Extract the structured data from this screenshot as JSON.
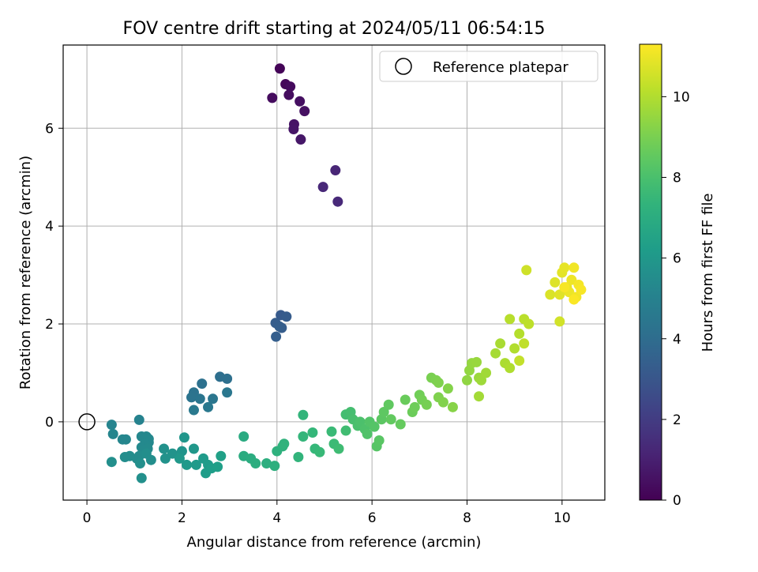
{
  "chart_data": {
    "type": "scatter",
    "title": "FOV centre drift starting at 2024/05/11 06:54:15",
    "xlabel": "Angular distance from reference (arcmin)",
    "ylabel": "Rotation from reference (arcmin)",
    "xlim": [
      -0.5,
      10.9
    ],
    "ylim": [
      -1.6,
      7.7
    ],
    "xticks": [
      0,
      2,
      4,
      6,
      8,
      10
    ],
    "yticks": [
      0,
      2,
      4,
      6
    ],
    "grid": true,
    "legend": {
      "placement": "top-right",
      "entries": [
        "Reference platepar"
      ]
    },
    "reference_point": {
      "x": 0,
      "y": 0,
      "label": "Reference platepar"
    },
    "colorbar": {
      "label": "Hours from first FF file",
      "range": [
        0,
        11.3
      ],
      "ticks": [
        0,
        2,
        4,
        6,
        8,
        10
      ],
      "colormap": "viridis"
    },
    "series": [
      {
        "points": [
          [
            4.06,
            7.22,
            0.1
          ],
          [
            4.18,
            6.9,
            0.2
          ],
          [
            4.28,
            6.85,
            0.3
          ],
          [
            3.9,
            6.62,
            0.35
          ],
          [
            4.25,
            6.68,
            0.4
          ],
          [
            4.48,
            6.55,
            0.45
          ],
          [
            4.58,
            6.35,
            0.5
          ],
          [
            4.36,
            6.08,
            0.6
          ],
          [
            4.35,
            5.98,
            0.65
          ],
          [
            4.5,
            5.77,
            0.7
          ],
          [
            5.23,
            5.14,
            1.2
          ],
          [
            4.97,
            4.8,
            1.25
          ],
          [
            5.28,
            4.5,
            1.3
          ],
          [
            4.08,
            2.18,
            3.2
          ],
          [
            4.2,
            2.15,
            3.25
          ],
          [
            3.97,
            2.02,
            3.3
          ],
          [
            4.1,
            1.92,
            3.3
          ],
          [
            4.05,
            1.95,
            3.35
          ],
          [
            3.98,
            1.74,
            3.4
          ],
          [
            2.8,
            0.92,
            4.1
          ],
          [
            2.95,
            0.88,
            4.15
          ],
          [
            2.42,
            0.78,
            4.2
          ],
          [
            2.25,
            0.6,
            4.3
          ],
          [
            2.2,
            0.5,
            4.35
          ],
          [
            2.38,
            0.47,
            4.4
          ],
          [
            2.65,
            0.47,
            4.45
          ],
          [
            2.95,
            0.6,
            4.5
          ],
          [
            2.55,
            0.3,
            4.55
          ],
          [
            2.25,
            0.24,
            4.6
          ],
          [
            1.1,
            0.04,
            5.0
          ],
          [
            0.52,
            -0.06,
            5.1
          ],
          [
            0.55,
            -0.25,
            5.15
          ],
          [
            0.75,
            -0.36,
            5.2
          ],
          [
            0.82,
            -0.36,
            5.2
          ],
          [
            1.15,
            -0.3,
            5.25
          ],
          [
            1.25,
            -0.3,
            5.25
          ],
          [
            1.3,
            -0.35,
            5.3
          ],
          [
            1.3,
            -0.42,
            5.3
          ],
          [
            1.22,
            -0.45,
            5.35
          ],
          [
            1.15,
            -0.52,
            5.35
          ],
          [
            1.2,
            -0.6,
            5.4
          ],
          [
            1.28,
            -0.55,
            5.4
          ],
          [
            1.1,
            -0.7,
            5.45
          ],
          [
            1.05,
            -0.75,
            5.45
          ],
          [
            0.9,
            -0.7,
            5.5
          ],
          [
            0.8,
            -0.72,
            5.5
          ],
          [
            1.25,
            -0.65,
            5.55
          ],
          [
            1.35,
            -0.78,
            5.55
          ],
          [
            1.12,
            -0.85,
            5.6
          ],
          [
            0.52,
            -0.82,
            5.6
          ],
          [
            1.15,
            -1.15,
            5.65
          ],
          [
            1.62,
            -0.55,
            5.7
          ],
          [
            1.65,
            -0.75,
            5.75
          ],
          [
            1.8,
            -0.65,
            5.8
          ],
          [
            2.0,
            -0.6,
            5.85
          ],
          [
            2.05,
            -0.32,
            5.9
          ],
          [
            2.25,
            -0.55,
            5.95
          ],
          [
            1.95,
            -0.75,
            6.0
          ],
          [
            2.1,
            -0.88,
            6.05
          ],
          [
            2.3,
            -0.88,
            6.1
          ],
          [
            2.45,
            -0.75,
            6.15
          ],
          [
            2.55,
            -0.88,
            6.2
          ],
          [
            2.5,
            -1.05,
            6.25
          ],
          [
            2.62,
            -0.95,
            6.3
          ],
          [
            2.75,
            -0.92,
            6.35
          ],
          [
            2.82,
            -0.7,
            6.4
          ],
          [
            3.3,
            -0.3,
            6.9
          ],
          [
            3.3,
            -0.7,
            6.95
          ],
          [
            3.45,
            -0.75,
            7.0
          ],
          [
            3.55,
            -0.85,
            7.05
          ],
          [
            3.78,
            -0.85,
            7.1
          ],
          [
            3.95,
            -0.9,
            7.15
          ],
          [
            4.0,
            -0.6,
            7.2
          ],
          [
            4.12,
            -0.5,
            7.25
          ],
          [
            4.15,
            -0.45,
            7.3
          ],
          [
            4.45,
            -0.72,
            7.35
          ],
          [
            4.55,
            0.14,
            7.4
          ],
          [
            4.55,
            -0.3,
            7.45
          ],
          [
            4.75,
            -0.22,
            7.5
          ],
          [
            4.8,
            -0.55,
            7.55
          ],
          [
            4.9,
            -0.62,
            7.6
          ],
          [
            5.15,
            -0.2,
            7.65
          ],
          [
            5.2,
            -0.45,
            7.7
          ],
          [
            5.3,
            -0.55,
            7.75
          ],
          [
            5.45,
            -0.18,
            7.8
          ],
          [
            5.45,
            0.15,
            7.85
          ],
          [
            5.55,
            0.2,
            7.9
          ],
          [
            5.6,
            0.05,
            7.95
          ],
          [
            5.7,
            -0.08,
            8.0
          ],
          [
            5.75,
            0.0,
            8.05
          ],
          [
            5.85,
            -0.15,
            8.1
          ],
          [
            5.9,
            -0.25,
            8.15
          ],
          [
            5.95,
            0.0,
            8.2
          ],
          [
            6.05,
            -0.1,
            8.25
          ],
          [
            6.1,
            -0.5,
            8.3
          ],
          [
            6.15,
            -0.38,
            8.35
          ],
          [
            6.2,
            0.05,
            8.4
          ],
          [
            6.25,
            0.2,
            8.45
          ],
          [
            6.35,
            0.35,
            8.5
          ],
          [
            6.4,
            0.05,
            8.55
          ],
          [
            6.6,
            -0.05,
            8.6
          ],
          [
            6.7,
            0.45,
            8.7
          ],
          [
            6.85,
            0.2,
            8.75
          ],
          [
            6.9,
            0.3,
            8.8
          ],
          [
            7.0,
            0.55,
            8.85
          ],
          [
            7.05,
            0.45,
            8.9
          ],
          [
            7.15,
            0.35,
            8.95
          ],
          [
            7.25,
            0.9,
            9.0
          ],
          [
            7.35,
            0.85,
            9.05
          ],
          [
            7.4,
            0.8,
            9.1
          ],
          [
            7.4,
            0.5,
            9.1
          ],
          [
            7.5,
            0.4,
            9.15
          ],
          [
            7.6,
            0.68,
            9.2
          ],
          [
            7.7,
            0.3,
            9.25
          ],
          [
            8.0,
            0.85,
            9.4
          ],
          [
            8.05,
            1.05,
            9.45
          ],
          [
            8.1,
            1.2,
            9.5
          ],
          [
            8.2,
            1.22,
            9.55
          ],
          [
            8.25,
            0.9,
            9.6
          ],
          [
            8.3,
            0.85,
            9.65
          ],
          [
            8.4,
            1.0,
            9.7
          ],
          [
            8.25,
            0.52,
            9.75
          ],
          [
            8.6,
            1.4,
            9.8
          ],
          [
            8.7,
            1.6,
            9.85
          ],
          [
            8.8,
            1.2,
            9.9
          ],
          [
            8.9,
            1.1,
            9.95
          ],
          [
            9.0,
            1.5,
            10.0
          ],
          [
            9.1,
            1.8,
            10.05
          ],
          [
            8.9,
            2.1,
            10.1
          ],
          [
            9.2,
            2.1,
            10.15
          ],
          [
            9.3,
            2.0,
            10.2
          ],
          [
            9.2,
            1.6,
            10.25
          ],
          [
            9.1,
            1.25,
            10.3
          ],
          [
            9.25,
            3.1,
            10.5
          ],
          [
            9.95,
            2.05,
            10.55
          ],
          [
            9.75,
            2.6,
            10.7
          ],
          [
            9.85,
            2.85,
            10.75
          ],
          [
            9.95,
            2.6,
            10.8
          ],
          [
            10.0,
            3.05,
            10.85
          ],
          [
            10.05,
            3.15,
            10.9
          ],
          [
            10.1,
            2.75,
            10.95
          ],
          [
            10.15,
            2.65,
            11.0
          ],
          [
            10.2,
            2.9,
            11.05
          ],
          [
            10.25,
            3.15,
            11.1
          ],
          [
            10.3,
            2.55,
            11.1
          ],
          [
            10.35,
            2.8,
            11.15
          ],
          [
            10.4,
            2.7,
            11.2
          ],
          [
            10.05,
            2.75,
            11.2
          ],
          [
            10.25,
            2.5,
            11.25
          ]
        ]
      }
    ]
  }
}
